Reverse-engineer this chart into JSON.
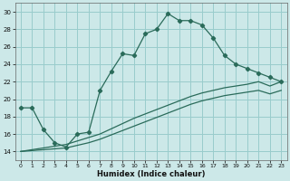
{
  "xlabel": "Humidex (Indice chaleur)",
  "bg_color": "#cce8e8",
  "grid_color": "#99cccc",
  "line_color": "#2a6b5a",
  "xlim": [
    -0.5,
    23.5
  ],
  "ylim": [
    13,
    31
  ],
  "xticks": [
    0,
    1,
    2,
    3,
    4,
    5,
    6,
    7,
    8,
    9,
    10,
    11,
    12,
    13,
    14,
    15,
    16,
    17,
    18,
    19,
    20,
    21,
    22,
    23
  ],
  "yticks": [
    14,
    16,
    18,
    20,
    22,
    24,
    26,
    28,
    30
  ],
  "curve1_x": [
    0,
    1,
    2,
    3,
    4,
    5,
    6,
    7,
    8,
    9,
    10,
    11,
    12,
    13,
    14,
    15,
    16,
    17,
    18,
    19,
    20,
    21,
    22,
    23
  ],
  "curve1_y": [
    19.0,
    19.0,
    16.5,
    15.0,
    14.5,
    16.0,
    16.2,
    21.0,
    23.2,
    25.2,
    25.0,
    27.5,
    28.0,
    29.8,
    29.0,
    29.0,
    28.5,
    27.0,
    25.0,
    24.0,
    23.5,
    23.0,
    22.5,
    22.0
  ],
  "curve2_x": [
    0,
    1,
    2,
    3,
    4,
    5,
    6,
    7,
    8,
    9,
    10,
    11,
    12,
    13,
    14,
    15,
    16,
    17,
    18,
    19,
    20,
    21,
    22,
    23
  ],
  "curve2_y": [
    14.0,
    14.2,
    14.4,
    14.6,
    14.8,
    15.2,
    15.6,
    16.0,
    16.6,
    17.2,
    17.8,
    18.3,
    18.8,
    19.3,
    19.8,
    20.3,
    20.7,
    21.0,
    21.3,
    21.5,
    21.7,
    22.0,
    21.5,
    22.0
  ],
  "curve3_x": [
    0,
    1,
    2,
    3,
    4,
    5,
    6,
    7,
    8,
    9,
    10,
    11,
    12,
    13,
    14,
    15,
    16,
    17,
    18,
    19,
    20,
    21,
    22,
    23
  ],
  "curve3_y": [
    14.0,
    14.1,
    14.2,
    14.3,
    14.4,
    14.7,
    15.0,
    15.4,
    15.9,
    16.4,
    16.9,
    17.4,
    17.9,
    18.4,
    18.9,
    19.4,
    19.8,
    20.1,
    20.4,
    20.6,
    20.8,
    21.0,
    20.6,
    21.0
  ]
}
